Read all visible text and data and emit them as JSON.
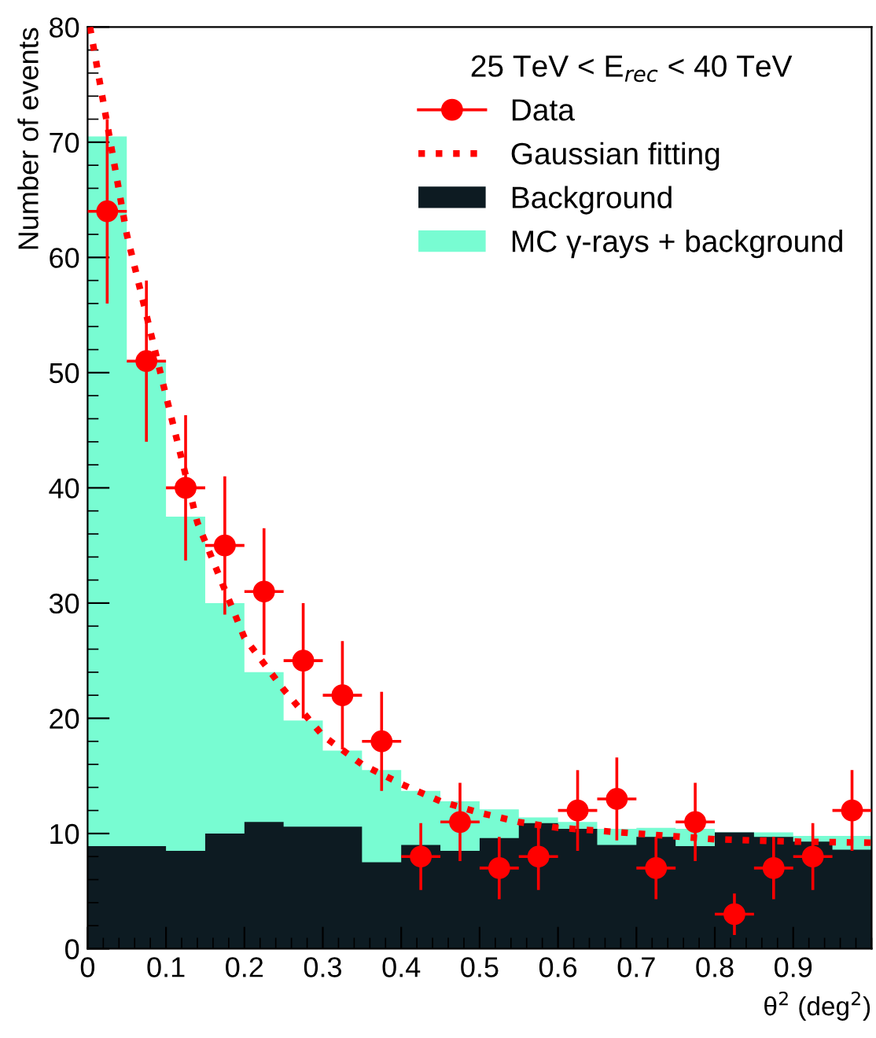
{
  "chart_data": {
    "type": "histogram",
    "xlabel": "θ$^{2}$ (deg$^{2}$)",
    "ylabel": "Number of events",
    "legend_title": "25 TeV < E$_{rec}$ < 40 TeV",
    "legend": "top right",
    "grid": false,
    "xlim": [
      0,
      1
    ],
    "xticks": [
      0,
      0.1,
      0.2,
      0.3,
      0.4,
      0.5,
      0.6,
      0.7,
      0.8,
      0.9
    ],
    "ylim": [
      0,
      80
    ],
    "yticks": [
      0,
      10,
      20,
      30,
      40,
      50,
      60,
      70,
      80
    ],
    "bins": [
      0,
      0.05,
      0.1,
      0.15,
      0.2,
      0.25,
      0.3,
      0.35,
      0.4,
      0.45,
      0.5,
      0.55,
      0.6,
      0.65,
      0.7,
      0.75,
      0.8,
      0.85,
      0.9,
      0.95,
      1.0
    ],
    "series": [
      {
        "name": "Data",
        "type": "scatter",
        "color": "#ff0000",
        "marker": "circle",
        "x": [
          0.025,
          0.075,
          0.125,
          0.175,
          0.225,
          0.275,
          0.325,
          0.375,
          0.425,
          0.475,
          0.525,
          0.575,
          0.625,
          0.675,
          0.725,
          0.775,
          0.825,
          0.875,
          0.925,
          0.975
        ],
        "values": [
          64,
          51,
          40,
          35,
          31,
          25,
          22,
          18,
          8,
          11,
          7,
          8,
          12,
          13,
          7,
          11,
          3,
          7,
          8,
          12
        ],
        "errors": [
          8,
          7,
          6.3,
          6,
          5.5,
          5,
          4.7,
          4.3,
          2.9,
          3.4,
          2.7,
          2.9,
          3.5,
          3.6,
          2.7,
          3.4,
          1.8,
          2.7,
          2.9,
          3.5
        ],
        "xerrors": [
          0.025,
          0.025,
          0.025,
          0.025,
          0.025,
          0.025,
          0.025,
          0.025,
          0.025,
          0.025,
          0.025,
          0.025,
          0.025,
          0.025,
          0.025,
          0.025,
          0.025,
          0.025,
          0.025,
          0.025
        ]
      },
      {
        "name": "Gaussian fitting",
        "type": "line",
        "color": "#ff0000",
        "line_style": "dotted",
        "marker": "none",
        "x": [
          0.003,
          0.05,
          0.1,
          0.14,
          0.2,
          0.25,
          0.3,
          0.35,
          0.4,
          0.45,
          0.5,
          0.55,
          0.6,
          0.7,
          0.8,
          0.9,
          1.0
        ],
        "values": [
          80,
          62,
          48,
          37,
          27,
          22.5,
          18.5,
          16,
          14.3,
          12.8,
          11.8,
          11,
          10.5,
          10,
          9.5,
          9.3,
          9.2
        ]
      },
      {
        "name": "Background",
        "color": "#0d1b22",
        "values": [
          8.9,
          8.9,
          8.5,
          10,
          11,
          10.6,
          10.6,
          7.5,
          9,
          8.5,
          9.6,
          10.9,
          10.4,
          9,
          9.7,
          8.9,
          10.1,
          9.7,
          9.3,
          8.6
        ]
      },
      {
        "name": "MC γ-rays + background",
        "color": "#78fcd2",
        "values": [
          70.5,
          51,
          37.5,
          30,
          24,
          19.8,
          17.2,
          15.5,
          13.7,
          12.8,
          12.1,
          11.4,
          11,
          10.4,
          10.5,
          10.4,
          10.1,
          10.1,
          9.8,
          9.8
        ]
      }
    ]
  }
}
